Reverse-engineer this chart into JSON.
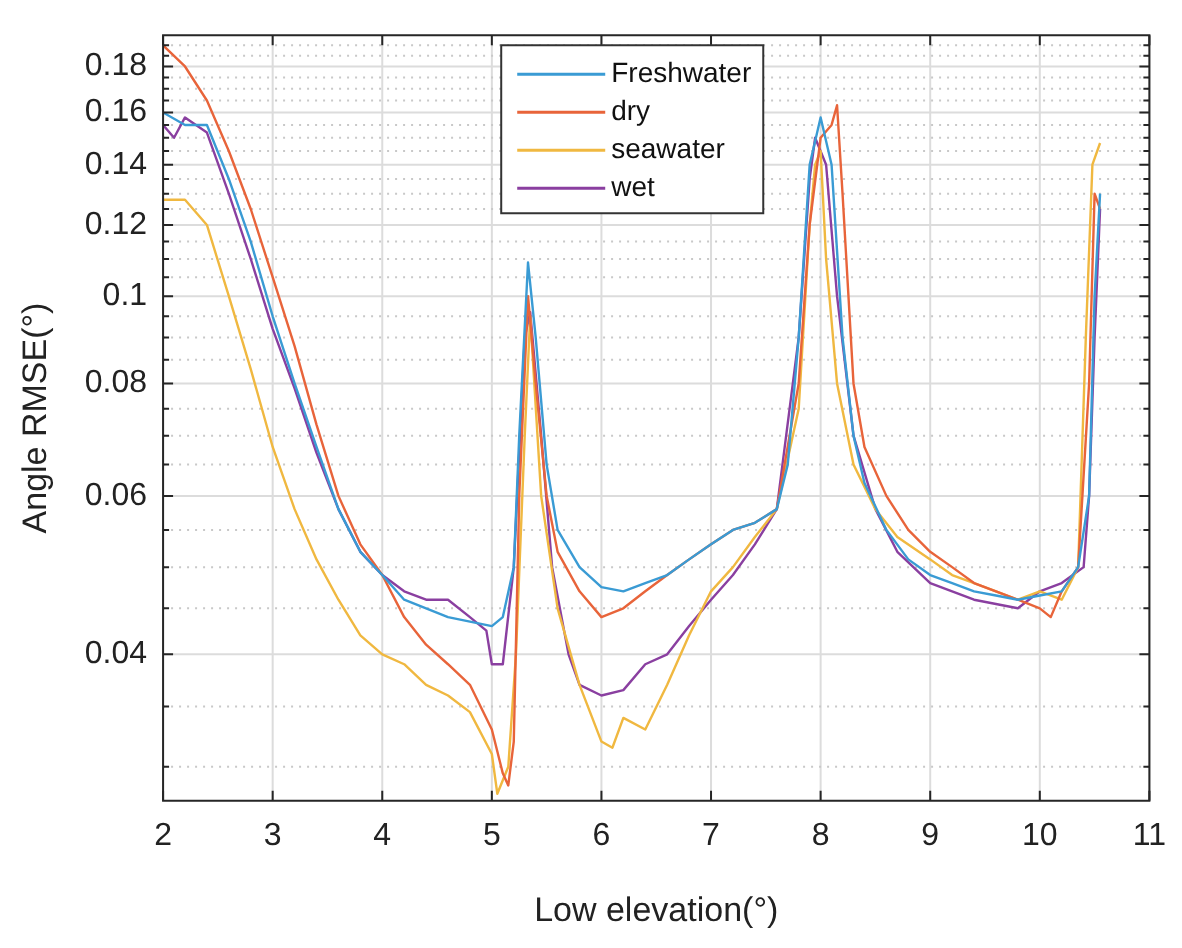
{
  "chart_data": {
    "type": "line",
    "xlabel": "Low elevation(°)",
    "ylabel": "Angle RMSE(°)",
    "log": "y",
    "grid": true,
    "legend": "top",
    "marker": "none",
    "line_style": "solid",
    "xlim": [
      2,
      11
    ],
    "xticks": [
      2,
      3,
      4,
      5,
      6,
      7,
      8,
      9,
      10,
      11
    ],
    "ylim": [
      0.0275,
      0.195
    ],
    "yticks": [
      {
        "value": 0.03,
        "label": null
      },
      {
        "value": 0.035,
        "label": null
      },
      0.04,
      {
        "value": 0.045,
        "label": null
      },
      {
        "value": 0.05,
        "label": null
      },
      {
        "value": 0.055,
        "label": null
      },
      0.06,
      {
        "value": 0.065,
        "label": null
      },
      {
        "value": 0.07,
        "label": null
      },
      {
        "value": 0.075,
        "label": null
      },
      0.08,
      {
        "value": 0.085,
        "label": null
      },
      {
        "value": 0.09,
        "label": null
      },
      {
        "value": 0.095,
        "label": null
      },
      0.1,
      {
        "value": 0.105,
        "label": null
      },
      {
        "value": 0.11,
        "label": null
      },
      {
        "value": 0.115,
        "label": null
      },
      0.12,
      {
        "value": 0.125,
        "label": null
      },
      {
        "value": 0.13,
        "label": null
      },
      {
        "value": 0.135,
        "label": null
      },
      0.14,
      {
        "value": 0.145,
        "label": null
      },
      {
        "value": 0.15,
        "label": null
      },
      {
        "value": 0.155,
        "label": null
      },
      0.16,
      {
        "value": 0.165,
        "label": null
      },
      {
        "value": 0.17,
        "label": null
      },
      {
        "value": 0.175,
        "label": null
      },
      0.18,
      {
        "value": 0.185,
        "label": null
      },
      {
        "value": 0.19,
        "label": null
      }
    ],
    "series": [
      {
        "name": "Freshwater",
        "color": "#3a9bd4",
        "x": [
          2.0,
          2.2,
          2.4,
          2.6,
          2.8,
          3.0,
          3.2,
          3.4,
          3.6,
          3.8,
          4.0,
          4.2,
          4.4,
          4.6,
          4.8,
          5.0,
          5.1,
          5.2,
          5.25,
          5.33,
          5.4,
          5.5,
          5.6,
          5.8,
          6.0,
          6.2,
          6.4,
          6.6,
          6.8,
          7.0,
          7.2,
          7.4,
          7.6,
          7.7,
          7.8,
          7.9,
          8.0,
          8.1,
          8.2,
          8.3,
          8.4,
          8.6,
          8.8,
          9.0,
          9.2,
          9.4,
          9.6,
          9.8,
          10.0,
          10.2,
          10.35,
          10.45,
          10.5,
          10.55
        ],
        "values": [
          0.16,
          0.155,
          0.155,
          0.135,
          0.115,
          0.095,
          0.08,
          0.068,
          0.058,
          0.052,
          0.049,
          0.046,
          0.045,
          0.044,
          0.0435,
          0.043,
          0.044,
          0.05,
          0.07,
          0.109,
          0.09,
          0.065,
          0.055,
          0.05,
          0.0475,
          0.047,
          0.048,
          0.049,
          0.051,
          0.053,
          0.055,
          0.056,
          0.058,
          0.065,
          0.09,
          0.14,
          0.158,
          0.14,
          0.09,
          0.07,
          0.062,
          0.055,
          0.051,
          0.049,
          0.048,
          0.047,
          0.0465,
          0.046,
          0.0465,
          0.047,
          0.05,
          0.06,
          0.1,
          0.13
        ]
      },
      {
        "name": "dry",
        "color": "#e8643a",
        "x": [
          2.0,
          2.2,
          2.4,
          2.6,
          2.8,
          3.0,
          3.2,
          3.4,
          3.6,
          3.8,
          4.0,
          4.2,
          4.4,
          4.6,
          4.8,
          5.0,
          5.1,
          5.15,
          5.2,
          5.25,
          5.33,
          5.4,
          5.5,
          5.6,
          5.8,
          6.0,
          6.2,
          6.4,
          6.6,
          6.8,
          7.0,
          7.2,
          7.4,
          7.6,
          7.8,
          7.9,
          8.0,
          8.1,
          8.15,
          8.2,
          8.3,
          8.4,
          8.6,
          8.8,
          9.0,
          9.2,
          9.4,
          9.6,
          9.8,
          10.0,
          10.1,
          10.2,
          10.35,
          10.45,
          10.5,
          10.55
        ],
        "values": [
          0.19,
          0.18,
          0.165,
          0.145,
          0.125,
          0.105,
          0.088,
          0.072,
          0.06,
          0.053,
          0.049,
          0.044,
          0.041,
          0.039,
          0.037,
          0.033,
          0.0295,
          0.0286,
          0.032,
          0.06,
          0.1,
          0.08,
          0.06,
          0.052,
          0.047,
          0.044,
          0.045,
          0.047,
          0.049,
          0.051,
          0.053,
          0.055,
          0.056,
          0.058,
          0.08,
          0.12,
          0.15,
          0.155,
          0.163,
          0.13,
          0.08,
          0.068,
          0.06,
          0.055,
          0.052,
          0.05,
          0.048,
          0.047,
          0.046,
          0.045,
          0.044,
          0.047,
          0.05,
          0.08,
          0.13,
          0.125
        ]
      },
      {
        "name": "seawater",
        "color": "#f0b840",
        "x": [
          2.0,
          2.2,
          2.4,
          2.6,
          2.8,
          3.0,
          3.2,
          3.4,
          3.6,
          3.8,
          4.0,
          4.2,
          4.4,
          4.6,
          4.8,
          5.0,
          5.05,
          5.15,
          5.22,
          5.3,
          5.35,
          5.45,
          5.6,
          5.8,
          6.0,
          6.1,
          6.2,
          6.4,
          6.6,
          6.8,
          7.0,
          7.2,
          7.4,
          7.6,
          7.8,
          7.9,
          7.95,
          8.0,
          8.05,
          8.15,
          8.3,
          8.5,
          8.7,
          9.0,
          9.2,
          9.4,
          9.6,
          9.8,
          10.0,
          10.2,
          10.35,
          10.42,
          10.48,
          10.55
        ],
        "values": [
          0.128,
          0.128,
          0.12,
          0.1,
          0.083,
          0.068,
          0.058,
          0.051,
          0.046,
          0.042,
          0.04,
          0.039,
          0.037,
          0.036,
          0.0345,
          0.031,
          0.028,
          0.03,
          0.04,
          0.07,
          0.095,
          0.06,
          0.045,
          0.037,
          0.032,
          0.0315,
          0.034,
          0.033,
          0.037,
          0.042,
          0.047,
          0.05,
          0.054,
          0.058,
          0.075,
          0.12,
          0.14,
          0.145,
          0.11,
          0.08,
          0.065,
          0.058,
          0.054,
          0.051,
          0.049,
          0.048,
          0.047,
          0.046,
          0.047,
          0.046,
          0.05,
          0.09,
          0.14,
          0.148
        ]
      },
      {
        "name": "wet",
        "color": "#8a3fa0",
        "x": [
          2.0,
          2.1,
          2.2,
          2.4,
          2.6,
          2.8,
          3.0,
          3.2,
          3.4,
          3.6,
          3.8,
          4.0,
          4.2,
          4.4,
          4.6,
          4.8,
          4.95,
          5.0,
          5.1,
          5.2,
          5.3,
          5.35,
          5.45,
          5.55,
          5.7,
          5.8,
          6.0,
          6.2,
          6.4,
          6.6,
          6.8,
          7.0,
          7.2,
          7.4,
          7.6,
          7.8,
          7.9,
          7.95,
          8.05,
          8.15,
          8.3,
          8.5,
          8.7,
          9.0,
          9.2,
          9.4,
          9.6,
          9.8,
          10.0,
          10.2,
          10.4,
          10.45,
          10.5,
          10.55
        ],
        "values": [
          0.155,
          0.15,
          0.158,
          0.152,
          0.13,
          0.11,
          0.092,
          0.079,
          0.067,
          0.058,
          0.052,
          0.049,
          0.047,
          0.046,
          0.046,
          0.044,
          0.0425,
          0.039,
          0.039,
          0.05,
          0.09,
          0.096,
          0.07,
          0.05,
          0.04,
          0.037,
          0.036,
          0.0365,
          0.039,
          0.04,
          0.043,
          0.046,
          0.049,
          0.053,
          0.058,
          0.09,
          0.135,
          0.15,
          0.14,
          0.1,
          0.07,
          0.058,
          0.052,
          0.048,
          0.047,
          0.046,
          0.0455,
          0.045,
          0.047,
          0.048,
          0.05,
          0.06,
          0.09,
          0.125
        ]
      }
    ]
  }
}
